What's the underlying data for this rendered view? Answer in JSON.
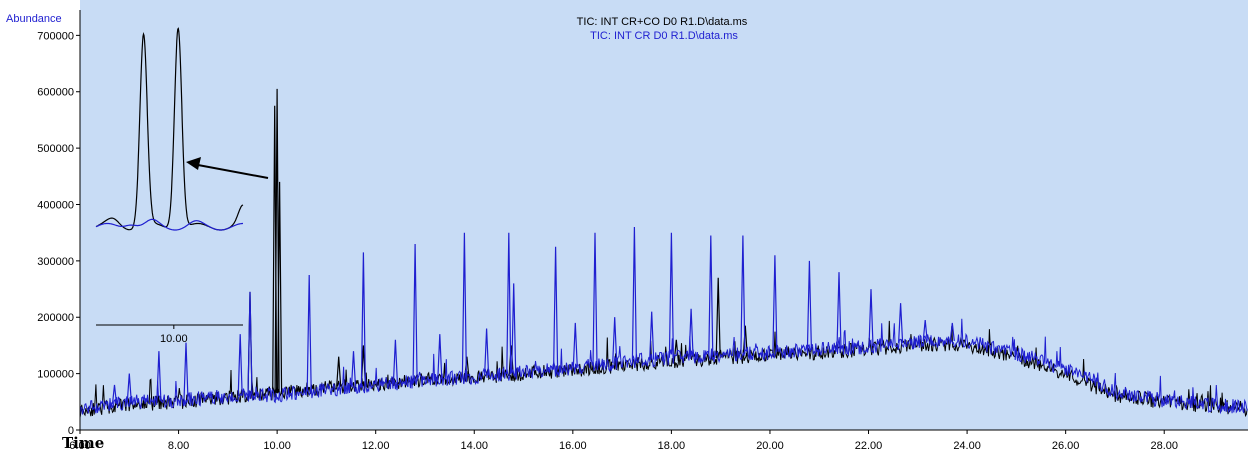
{
  "chart_data": {
    "type": "line",
    "ylabel": "Abundance",
    "xlabel": "Time",
    "titles": [
      "TIC: INT CR+CO D0 R1.D\\data.ms",
      "TIC: INT CR D0 R1.D\\data.ms"
    ],
    "title_colors": [
      "#000000",
      "#1f1fd0"
    ],
    "background_color": "#c8dcf5",
    "xlim": [
      6.0,
      29.7
    ],
    "ylim": [
      0,
      745000
    ],
    "x_ticks": [
      6.0,
      8.0,
      10.0,
      12.0,
      14.0,
      16.0,
      18.0,
      20.0,
      22.0,
      24.0,
      26.0,
      28.0
    ],
    "x_tick_labels": [
      "6.00",
      "8.00",
      "10.00",
      "12.00",
      "14.00",
      "16.00",
      "18.00",
      "20.00",
      "22.00",
      "24.00",
      "26.00",
      "28.00"
    ],
    "y_ticks": [
      0,
      100000,
      200000,
      300000,
      400000,
      500000,
      600000,
      700000
    ],
    "y_tick_labels": [
      "0",
      "100000",
      "200000",
      "300000",
      "400000",
      "500000",
      "600000",
      "700000"
    ],
    "series": [
      {
        "name": "TIC: INT CR+CO D0 R1.D\\data.ms",
        "color": "#000000",
        "baseline": [
          [
            6.0,
            35000
          ],
          [
            7.0,
            45000
          ],
          [
            8.0,
            50000
          ],
          [
            9.0,
            58000
          ],
          [
            10.0,
            66000
          ],
          [
            11.0,
            75000
          ],
          [
            12.0,
            82000
          ],
          [
            13.0,
            88000
          ],
          [
            14.0,
            94000
          ],
          [
            15.0,
            100000
          ],
          [
            16.0,
            106000
          ],
          [
            17.0,
            115000
          ],
          [
            18.0,
            122000
          ],
          [
            19.0,
            128000
          ],
          [
            20.0,
            133000
          ],
          [
            21.0,
            138000
          ],
          [
            22.0,
            142000
          ],
          [
            23.0,
            152000
          ],
          [
            24.0,
            152000
          ],
          [
            25.0,
            128000
          ],
          [
            26.0,
            100000
          ],
          [
            26.5,
            80000
          ],
          [
            27.0,
            62000
          ],
          [
            28.0,
            50000
          ],
          [
            29.0,
            42000
          ],
          [
            29.7,
            38000
          ]
        ],
        "peaks": [
          [
            9.45,
            245000
          ],
          [
            9.95,
            575000
          ],
          [
            10.0,
            605000
          ],
          [
            10.05,
            440000
          ],
          [
            11.25,
            130000
          ],
          [
            11.75,
            150000
          ],
          [
            13.85,
            130000
          ],
          [
            14.75,
            150000
          ],
          [
            18.1,
            160000
          ],
          [
            18.95,
            270000
          ],
          [
            19.5,
            185000
          ]
        ]
      },
      {
        "name": "TIC: INT CR D0 R1.D\\data.ms",
        "color": "#1f1fd0",
        "baseline": [
          [
            6.0,
            38000
          ],
          [
            7.0,
            50000
          ],
          [
            8.0,
            52000
          ],
          [
            9.0,
            60000
          ],
          [
            10.0,
            62000
          ],
          [
            11.0,
            72000
          ],
          [
            12.0,
            80000
          ],
          [
            13.0,
            88000
          ],
          [
            14.0,
            95000
          ],
          [
            15.0,
            102000
          ],
          [
            16.0,
            110000
          ],
          [
            17.0,
            120000
          ],
          [
            18.0,
            128000
          ],
          [
            19.0,
            133000
          ],
          [
            20.0,
            138000
          ],
          [
            21.0,
            143000
          ],
          [
            22.0,
            148000
          ],
          [
            23.0,
            158000
          ],
          [
            24.0,
            158000
          ],
          [
            25.0,
            135000
          ],
          [
            26.0,
            108000
          ],
          [
            26.5,
            90000
          ],
          [
            27.0,
            68000
          ],
          [
            28.0,
            52000
          ],
          [
            29.0,
            44000
          ],
          [
            29.7,
            40000
          ]
        ],
        "peaks": [
          [
            6.7,
            80000
          ],
          [
            7.0,
            100000
          ],
          [
            7.6,
            140000
          ],
          [
            8.15,
            155000
          ],
          [
            9.25,
            170000
          ],
          [
            9.45,
            245000
          ],
          [
            10.65,
            275000
          ],
          [
            11.55,
            140000
          ],
          [
            11.75,
            315000
          ],
          [
            12.4,
            160000
          ],
          [
            12.8,
            330000
          ],
          [
            13.3,
            170000
          ],
          [
            13.8,
            350000
          ],
          [
            14.25,
            180000
          ],
          [
            14.7,
            350000
          ],
          [
            14.8,
            260000
          ],
          [
            15.65,
            325000
          ],
          [
            16.05,
            190000
          ],
          [
            16.45,
            350000
          ],
          [
            16.85,
            200000
          ],
          [
            17.25,
            360000
          ],
          [
            17.6,
            210000
          ],
          [
            18.0,
            350000
          ],
          [
            18.4,
            215000
          ],
          [
            18.8,
            345000
          ],
          [
            19.45,
            345000
          ],
          [
            20.1,
            310000
          ],
          [
            20.8,
            300000
          ],
          [
            21.4,
            280000
          ],
          [
            22.05,
            250000
          ],
          [
            22.65,
            225000
          ],
          [
            23.15,
            195000
          ],
          [
            23.7,
            190000
          ]
        ]
      }
    ],
    "inset": {
      "x_tick_labels": [
        "10.00"
      ],
      "x_ticks": [
        10.0
      ],
      "xlim": [
        9.82,
        10.16
      ],
      "ylim": [
        0,
        745000
      ],
      "baseline": 240000,
      "series": [
        {
          "name": "TIC: INT CR+CO D0 R1.D\\data.ms",
          "color": "#000000",
          "peaks": [
            [
              9.93,
              708000
            ],
            [
              10.01,
              732000
            ]
          ]
        },
        {
          "name": "TIC: INT CR D0 R1.D\\data.ms",
          "color": "#1f1fd0",
          "peaks": [
            [
              9.9,
              252000
            ],
            [
              9.95,
              250000
            ],
            [
              10.05,
              247000
            ]
          ]
        }
      ]
    }
  }
}
